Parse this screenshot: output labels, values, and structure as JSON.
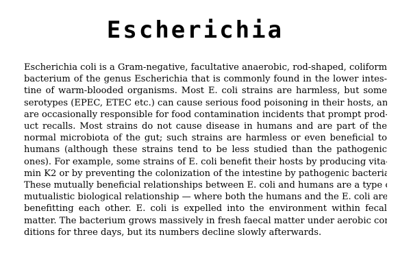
{
  "document": {
    "title": "Escherichia",
    "lines": [
      "Escherichia coli is a Gram-negative, facultative anaerobic, rod-shaped, coliform",
      "bacterium of the genus Escherichia that is commonly found in the lower intes-",
      "tine of warm-blooded organisms. Most E. coli strains are harmless, but some",
      "serotypes (EPEC, ETEC etc.) can cause serious food poisoning in their hosts, and",
      "are occasionally responsible for food contamination incidents that prompt prod-",
      "uct recalls. Most strains do not cause disease in humans and are part of the",
      "normal microbiota of the gut; such strains are harmless or even beneficial to",
      "humans (although these strains tend to be less studied than the pathogenic",
      "ones). For example, some strains of E. coli benefit their hosts by producing vita-",
      "min K2 or by preventing the colonization of the intestine by pathogenic bacteria.",
      "These mutually beneficial relationships between E. coli and humans are a type of",
      "mutualistic biological relationship — where both the humans and the E. coli are",
      "benefitting each other. E. coli is expelled into the environment within fecal",
      "matter. The bacterium grows massively in fresh faecal matter under aerobic con-",
      "ditions for three days, but its numbers decline slowly afterwards."
    ]
  }
}
